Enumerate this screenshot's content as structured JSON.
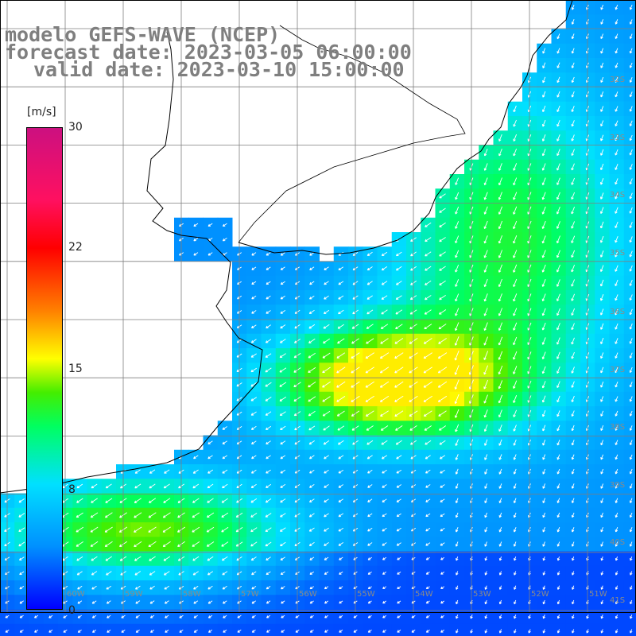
{
  "title": {
    "line1": "modelo GEFS-WAVE (NCEP)",
    "line2": "forecast date: 2023-03-05 06:00:00",
    "line3": "valid date: 2023-03-10 15:00:00"
  },
  "colorbar": {
    "unit": "[m/s]",
    "ticks": [
      "30",
      "22",
      "15",
      "8",
      "0"
    ],
    "tick_values": [
      30,
      22,
      15,
      8,
      0
    ],
    "min": 0,
    "max": 30
  },
  "lat_labels": [
    "32S",
    "33S",
    "34S",
    "35S",
    "36S",
    "37S",
    "38S",
    "39S",
    "40S",
    "41S"
  ],
  "lon_labels": [
    "60W",
    "59W",
    "58W",
    "57W",
    "56W",
    "55W",
    "54W",
    "53W",
    "52W",
    "51W"
  ],
  "colors": {
    "land": "#ffffff",
    "grid": "#7f7f7f",
    "coast": "#000000",
    "arrow": "#ffffff"
  }
}
